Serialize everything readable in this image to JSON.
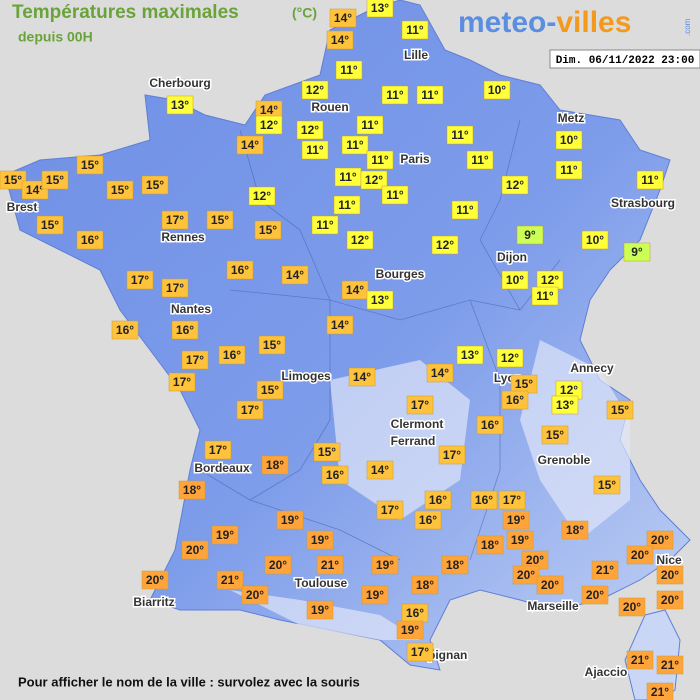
{
  "header": {
    "title": "Températures maximales",
    "unit": "(°C)",
    "subtitle": "depuis 00H",
    "logo": {
      "part1": "meteo-",
      "part2": "villes",
      "suffix": ".com"
    },
    "date": "Dim. 06/11/2022 23:00"
  },
  "cities": [
    "Cherbourg",
    "Lille",
    "Rouen",
    "Metz",
    "Paris",
    "Brest",
    "Strasbourg",
    "Rennes",
    "Dijon",
    "Bourges",
    "Nantes",
    "Annecy",
    "Limoges",
    "Lyon",
    "Clermont",
    "Ferrand",
    "Grenoble",
    "Bordeaux",
    "Nice",
    "Toulouse",
    "Biarritz",
    "Marseille",
    "Perpignan",
    "Ajaccio"
  ],
  "stations": [
    "13°",
    "14°",
    "14°",
    "11°",
    "11°",
    "12°",
    "11°",
    "11°",
    "10°",
    "14°",
    "12°",
    "12°",
    "11°",
    "11°",
    "10°",
    "14°",
    "11°",
    "11°",
    "11°",
    "11°",
    "11°",
    "13°",
    "15°",
    "15°",
    "14°",
    "15°",
    "15°",
    "15°",
    "11°",
    "12°",
    "11°",
    "12°",
    "11°",
    "12°",
    "15°",
    "17°",
    "15°",
    "15°",
    "11°",
    "11°",
    "11°",
    "16°",
    "12°",
    "12°",
    "9°",
    "10°",
    "9°",
    "16°",
    "14°",
    "17°",
    "17°",
    "14°",
    "13°",
    "10°",
    "12°",
    "11°",
    "16°",
    "16°",
    "14°",
    "15°",
    "16°",
    "17°",
    "17°",
    "13°",
    "12°",
    "14°",
    "14°",
    "15°",
    "15°",
    "12°",
    "16°",
    "13°",
    "15°",
    "17°",
    "17°",
    "16°",
    "15°",
    "17°",
    "15°",
    "17°",
    "18°",
    "16°",
    "14°",
    "18°",
    "15°",
    "16°",
    "16°",
    "17°",
    "17°",
    "16°",
    "19°",
    "18°",
    "19°",
    "19°",
    "19°",
    "19°",
    "18°",
    "20°",
    "20°",
    "20°",
    "20°",
    "20°",
    "21°",
    "19°",
    "18°",
    "20°",
    "21°",
    "20°",
    "20°",
    "21°",
    "18°",
    "20°",
    "20°",
    "20°",
    "19°",
    "20°",
    "20°",
    "19°",
    "16°",
    "19°",
    "17°",
    "21°",
    "21°",
    "21°"
  ],
  "footer": "Pour afficher le nom de la ville : survolez avec la souris"
}
